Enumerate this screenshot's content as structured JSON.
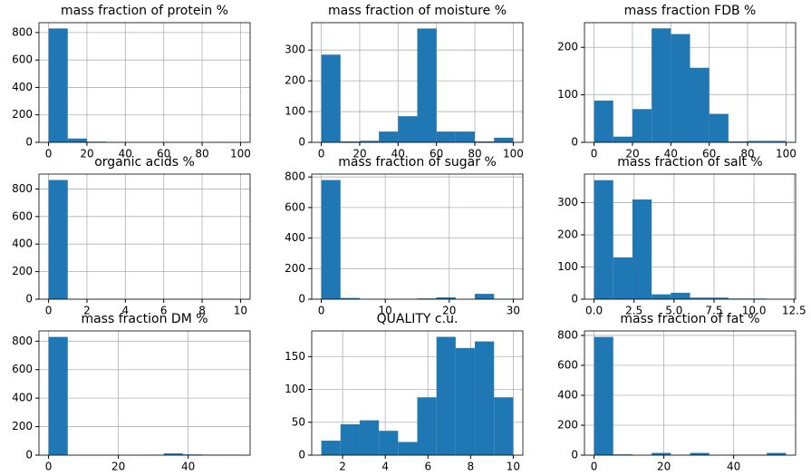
{
  "chart_data": [
    {
      "type": "histogram",
      "title": "mass fraction of protein %",
      "bins": [
        0,
        10,
        20,
        30,
        40,
        50,
        60,
        70,
        80,
        90,
        100
      ],
      "values": [
        830,
        28,
        5,
        1,
        0,
        0,
        0,
        0,
        0,
        1
      ],
      "color": "#1f77b4",
      "xlim": [
        -5,
        105
      ],
      "xticks": [
        0,
        20,
        40,
        60,
        80,
        100
      ],
      "ylim": [
        0,
        872
      ],
      "yticks": [
        0,
        200,
        400,
        600,
        800
      ],
      "grid": true
    },
    {
      "type": "histogram",
      "title": "mass fraction of moisture %",
      "bins": [
        0,
        10,
        20,
        30,
        40,
        50,
        60,
        70,
        80,
        90,
        100
      ],
      "values": [
        285,
        3,
        5,
        35,
        85,
        370,
        35,
        35,
        3,
        15
      ],
      "color": "#1f77b4",
      "xlim": [
        -5,
        105
      ],
      "xticks": [
        0,
        20,
        40,
        60,
        80,
        100
      ],
      "ylim": [
        0,
        389
      ],
      "yticks": [
        0,
        100,
        200,
        300
      ],
      "grid": true
    },
    {
      "type": "histogram",
      "title": "mass fraction FDB %",
      "bins": [
        0,
        10,
        20,
        30,
        40,
        50,
        60,
        70,
        80,
        90,
        100
      ],
      "values": [
        88,
        12,
        70,
        240,
        228,
        157,
        60,
        2,
        3,
        3
      ],
      "color": "#1f77b4",
      "xlim": [
        -5,
        105
      ],
      "xticks": [
        0,
        20,
        40,
        60,
        80,
        100
      ],
      "ylim": [
        0,
        252
      ],
      "yticks": [
        0,
        100,
        200
      ],
      "grid": true
    },
    {
      "type": "histogram",
      "title": "organic acids %",
      "bins": [
        0,
        1,
        2,
        3,
        4,
        5,
        6,
        7,
        8,
        9,
        10
      ],
      "values": [
        865,
        0,
        0,
        0,
        0,
        0,
        0,
        0,
        0,
        0
      ],
      "color": "#1f77b4",
      "xlim": [
        -0.5,
        10.5
      ],
      "xticks": [
        0,
        2,
        4,
        6,
        8,
        10
      ],
      "ylim": [
        0,
        908
      ],
      "yticks": [
        0,
        200,
        400,
        600,
        800
      ],
      "grid": true
    },
    {
      "type": "histogram",
      "title": "mass fraction of sugar %",
      "bins": [
        0,
        3,
        6,
        9,
        12,
        15,
        18,
        21,
        24,
        27,
        30
      ],
      "values": [
        780,
        8,
        0,
        0,
        0,
        5,
        12,
        0,
        35,
        2
      ],
      "color": "#1f77b4",
      "xlim": [
        -1.5,
        31.5
      ],
      "xticks": [
        0,
        10,
        20,
        30
      ],
      "ylim": [
        0,
        819
      ],
      "yticks": [
        0,
        200,
        400,
        600,
        800
      ],
      "grid": true
    },
    {
      "type": "histogram",
      "title": "mass fraction of salt %",
      "bins": [
        0,
        1.2,
        2.4,
        3.6,
        4.8,
        6,
        7.2,
        8.4,
        9.6,
        10.8,
        12
      ],
      "values": [
        370,
        130,
        310,
        15,
        20,
        5,
        5,
        2,
        2,
        0
      ],
      "color": "#1f77b4",
      "xlim": [
        -0.6,
        12.6
      ],
      "xticks": [
        {
          "value": 0,
          "label": "0.0"
        },
        2.5,
        {
          "value": 5,
          "label": "5.0"
        },
        7.5,
        {
          "value": 10,
          "label": "10.0"
        },
        12.5
      ],
      "ylim": [
        0,
        389
      ],
      "yticks": [
        0,
        100,
        200,
        300
      ],
      "grid": true
    },
    {
      "type": "histogram",
      "title": "mass fraction DM %",
      "bins": [
        0,
        5.5,
        11,
        16.5,
        22,
        27.5,
        33,
        38.5,
        44,
        49.5,
        55
      ],
      "values": [
        830,
        0,
        0,
        0,
        0,
        2,
        12,
        5,
        3,
        2
      ],
      "color": "#1f77b4",
      "xlim": [
        -2.75,
        57.75
      ],
      "xticks": [
        0,
        20,
        40
      ],
      "ylim": [
        0,
        872
      ],
      "yticks": [
        0,
        200,
        400,
        600,
        800
      ],
      "grid": true
    },
    {
      "type": "histogram",
      "title": "QUALITY c.u.",
      "bins": [
        1,
        1.9,
        2.8,
        3.7,
        4.6,
        5.5,
        6.4,
        7.3,
        8.2,
        9.1,
        10
      ],
      "values": [
        22,
        47,
        53,
        37,
        20,
        88,
        180,
        163,
        173,
        88
      ],
      "color": "#1f77b4",
      "xlim": [
        0.55,
        10.45
      ],
      "xticks": [
        2,
        4,
        6,
        8,
        10
      ],
      "ylim": [
        0,
        189
      ],
      "yticks": [
        0,
        50,
        100,
        150
      ],
      "grid": true
    },
    {
      "type": "histogram",
      "title": "mass fraction of fat %",
      "bins": [
        0,
        5.5,
        11,
        16.5,
        22,
        27.5,
        33,
        38.5,
        44,
        49.5,
        55
      ],
      "values": [
        790,
        5,
        0,
        15,
        2,
        15,
        0,
        3,
        2,
        15
      ],
      "color": "#1f77b4",
      "xlim": [
        -2.75,
        57.75
      ],
      "xticks": [
        0,
        20,
        40
      ],
      "ylim": [
        0,
        830
      ],
      "yticks": [
        0,
        200,
        400,
        600,
        800
      ],
      "grid": true
    }
  ]
}
